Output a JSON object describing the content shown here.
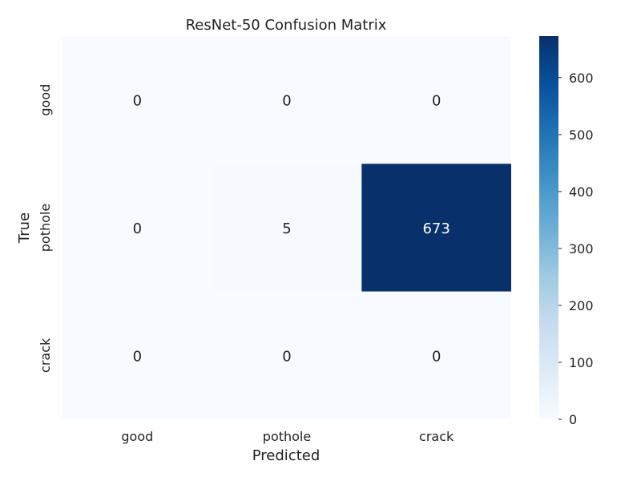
{
  "chart_data": {
    "type": "heatmap",
    "title": "ResNet-50 Confusion Matrix",
    "xlabel": "Predicted",
    "ylabel": "True",
    "x_categories": [
      "good",
      "pothole",
      "crack"
    ],
    "y_categories": [
      "good",
      "pothole",
      "crack"
    ],
    "values": [
      [
        0,
        0,
        0
      ],
      [
        0,
        5,
        673
      ],
      [
        0,
        0,
        0
      ]
    ],
    "colormap": "Blues",
    "colorbar": {
      "vmin": 0,
      "vmax": 673,
      "ticks": [
        0,
        100,
        200,
        300,
        400,
        500,
        600
      ]
    },
    "colors": {
      "low": "#f7fbff",
      "high": "#08306b"
    },
    "grid": false
  }
}
